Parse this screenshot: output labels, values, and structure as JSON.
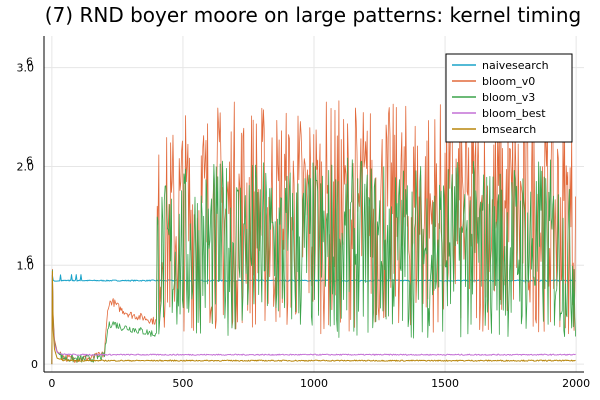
{
  "chart_data": {
    "type": "line",
    "title": "(7) RND boyer moore on large patterns: kernel timing",
    "xlabel": "",
    "ylabel": "",
    "xlim": [
      -30,
      2030
    ],
    "ylim": [
      -80000,
      3320000
    ],
    "x_ticks": [
      {
        "value": 0,
        "label": "0"
      },
      {
        "value": 500,
        "label": "500"
      },
      {
        "value": 1000,
        "label": "1000"
      },
      {
        "value": 1500,
        "label": "1500"
      },
      {
        "value": 2000,
        "label": "2000"
      }
    ],
    "y_ticks": [
      {
        "value": 0,
        "base": "0",
        "exp": ""
      },
      {
        "value": 1000000,
        "base": "1.0",
        "exp": "6"
      },
      {
        "value": 2000000,
        "base": "2.0",
        "exp": "6"
      },
      {
        "value": 3000000,
        "base": "3.0",
        "exp": "6"
      }
    ],
    "grid": true,
    "legend_position": "top-right",
    "series": [
      {
        "name": "naivesearch",
        "color": "#1aa3c9",
        "points": [
          [
            0,
            0
          ],
          [
            2,
            900000
          ],
          [
            5,
            850000
          ],
          [
            10,
            840000
          ],
          [
            20,
            840000
          ],
          [
            40,
            845000
          ],
          [
            100,
            845000
          ],
          [
            200,
            845000
          ],
          [
            400,
            845000
          ],
          [
            600,
            845000
          ],
          [
            1000,
            845000
          ],
          [
            1500,
            845000
          ],
          [
            2000,
            845000
          ]
        ]
      },
      {
        "name": "bloom_v0",
        "color": "#e26a3c",
        "points": [
          [
            0,
            0
          ],
          [
            2,
            960000
          ],
          [
            5,
            500000
          ],
          [
            10,
            250000
          ],
          [
            20,
            130000
          ],
          [
            40,
            80000
          ],
          [
            60,
            60000
          ],
          [
            100,
            55000
          ],
          [
            150,
            60000
          ],
          [
            200,
            100000
          ],
          [
            215,
            600000
          ],
          [
            230,
            640000
          ],
          [
            260,
            560000
          ],
          [
            300,
            500000
          ],
          [
            350,
            470000
          ],
          [
            399,
            430000
          ],
          [
            400,
            2200000
          ],
          [
            500,
            2600000
          ],
          [
            700,
            2700000
          ],
          [
            900,
            2650000
          ],
          [
            1100,
            2700000
          ],
          [
            1300,
            2650000
          ],
          [
            1500,
            2700000
          ],
          [
            1700,
            2650000
          ],
          [
            1900,
            2700000
          ],
          [
            2000,
            2500000
          ]
        ],
        "band_low": [
          [
            400,
            300000
          ],
          [
            600,
            350000
          ],
          [
            800,
            320000
          ],
          [
            1000,
            300000
          ],
          [
            1200,
            350000
          ],
          [
            1400,
            320000
          ],
          [
            1600,
            300000
          ],
          [
            1800,
            330000
          ],
          [
            2000,
            300000
          ]
        ]
      },
      {
        "name": "bloom_v3",
        "color": "#3ba34a",
        "points": [
          [
            0,
            0
          ],
          [
            2,
            950000
          ],
          [
            5,
            450000
          ],
          [
            10,
            220000
          ],
          [
            20,
            120000
          ],
          [
            40,
            70000
          ],
          [
            60,
            55000
          ],
          [
            100,
            50000
          ],
          [
            150,
            55000
          ],
          [
            200,
            80000
          ],
          [
            215,
            380000
          ],
          [
            230,
            420000
          ],
          [
            260,
            380000
          ],
          [
            300,
            360000
          ],
          [
            350,
            330000
          ],
          [
            399,
            300000
          ],
          [
            400,
            1800000
          ],
          [
            500,
            2000000
          ],
          [
            700,
            2100000
          ],
          [
            900,
            2050000
          ],
          [
            1100,
            2100000
          ],
          [
            1300,
            2050000
          ],
          [
            1500,
            2100000
          ],
          [
            1700,
            2050000
          ],
          [
            1900,
            2100000
          ],
          [
            2000,
            1700000
          ]
        ],
        "band_low": [
          [
            400,
            250000
          ],
          [
            600,
            300000
          ],
          [
            800,
            270000
          ],
          [
            1000,
            250000
          ],
          [
            1200,
            280000
          ],
          [
            1400,
            260000
          ],
          [
            1600,
            250000
          ],
          [
            1800,
            270000
          ],
          [
            2000,
            250000
          ]
        ]
      },
      {
        "name": "bloom_best",
        "color": "#c471d6",
        "points": [
          [
            0,
            0
          ],
          [
            2,
            900000
          ],
          [
            5,
            400000
          ],
          [
            10,
            200000
          ],
          [
            20,
            120000
          ],
          [
            40,
            100000
          ],
          [
            100,
            95000
          ],
          [
            200,
            95000
          ],
          [
            400,
            95000
          ],
          [
            600,
            95000
          ],
          [
            1000,
            95000
          ],
          [
            1500,
            95000
          ],
          [
            2000,
            95000
          ]
        ]
      },
      {
        "name": "bmsearch",
        "color": "#b8860b",
        "points": [
          [
            0,
            0
          ],
          [
            2,
            940000
          ],
          [
            5,
            350000
          ],
          [
            10,
            150000
          ],
          [
            20,
            60000
          ],
          [
            40,
            40000
          ],
          [
            100,
            35000
          ],
          [
            200,
            35000
          ],
          [
            400,
            35000
          ],
          [
            600,
            35000
          ],
          [
            1000,
            35000
          ],
          [
            1500,
            35000
          ],
          [
            2000,
            35000
          ]
        ]
      }
    ]
  }
}
